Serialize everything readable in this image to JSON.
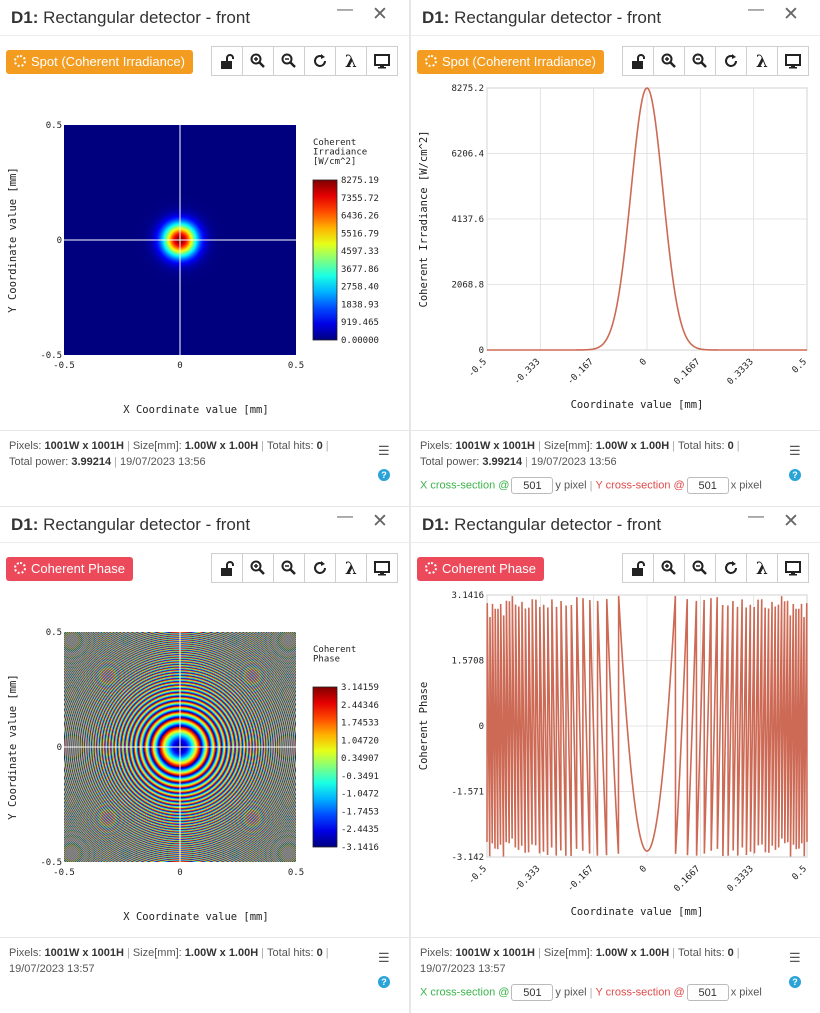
{
  "panels": [
    {
      "title_bold": "D1:",
      "title_rest": " Rectangular detector - front",
      "mode_label": "Spot (Coherent Irradiance)",
      "footer_line1": {
        "pixels_label": "Pixels:",
        "pixels": "1001W x 1001H",
        "size_label": "Size[mm]:",
        "size": "1.00W x 1.00H",
        "hits_label": "Total hits:",
        "hits": "0"
      },
      "footer_line2": {
        "power_label": "Total power:",
        "power": "3.99214",
        "date": "19/07/2023 13:56"
      }
    },
    {
      "title_bold": "D1:",
      "title_rest": " Rectangular detector - front",
      "mode_label": "Spot (Coherent Irradiance)",
      "footer_line1": {
        "pixels_label": "Pixels:",
        "pixels": "1001W x 1001H",
        "size_label": "Size[mm]:",
        "size": "1.00W x 1.00H",
        "hits_label": "Total hits:",
        "hits": "0"
      },
      "footer_line2": {
        "power_label": "Total power:",
        "power": "3.99214",
        "date": "19/07/2023 13:56"
      },
      "cross": {
        "x_label": "X cross-section @",
        "x_value": "501",
        "x_unit": "y pixel",
        "y_label": "Y cross-section @",
        "y_value": "501",
        "y_unit": "x pixel"
      }
    },
    {
      "title_bold": "D1:",
      "title_rest": " Rectangular detector - front",
      "mode_label": "Coherent Phase",
      "footer_line1": {
        "pixels_label": "Pixels:",
        "pixels": "1001W x 1001H",
        "size_label": "Size[mm]:",
        "size": "1.00W x 1.00H",
        "hits_label": "Total hits:",
        "hits": "0"
      },
      "footer_line2": {
        "date": "19/07/2023 13:57"
      }
    },
    {
      "title_bold": "D1:",
      "title_rest": " Rectangular detector - front",
      "mode_label": "Coherent Phase",
      "footer_line1": {
        "pixels_label": "Pixels:",
        "pixels": "1001W x 1001H",
        "size_label": "Size[mm]:",
        "size": "1.00W x 1.00H",
        "hits_label": "Total hits:",
        "hits": "0"
      },
      "footer_line2": {
        "date": "19/07/2023 13:57"
      },
      "cross": {
        "x_label": "X cross-section @",
        "x_value": "501",
        "x_unit": "y pixel",
        "y_label": "Y cross-section @",
        "y_value": "501",
        "y_unit": "x pixel"
      }
    }
  ],
  "toolbar_icons": [
    "unlock-icon",
    "zoom-in-icon",
    "zoom-out-icon",
    "refresh-icon",
    "lambda-icon",
    "monitor-icon"
  ],
  "colors": {
    "accent_orange": "#f39c1f",
    "accent_red": "#ec4a5b",
    "curve": "#cd6a55",
    "help": "#2aa3d8"
  },
  "chart_data": [
    {
      "type": "heatmap",
      "xlabel": "X Coordinate value [mm]",
      "ylabel": "Y Coordinate value [mm]",
      "xlim": [
        -0.5,
        0.5
      ],
      "ylim": [
        -0.5,
        0.5
      ],
      "x_ticks": [
        "-0.5",
        "0",
        "0.5"
      ],
      "y_ticks": [
        "0.5",
        "0",
        "-0.5"
      ],
      "colorbar_title": [
        "Coherent",
        "Irradiance",
        "[W/cm^2]"
      ],
      "colorbar_ticks": [
        "8275.19",
        "7355.72",
        "6436.26",
        "5516.79",
        "4597.33",
        "3677.86",
        "2758.40",
        "1838.93",
        "919.465",
        "0.00000"
      ],
      "spot_center": [
        0,
        0
      ],
      "spot_gaussian_sigma_mm": 0.05
    },
    {
      "type": "line",
      "xlabel": "Coordinate value [mm]",
      "ylabel": "Coherent Irradiance [W/cm^2]",
      "xlim": [
        -0.5,
        0.5
      ],
      "ylim": [
        0,
        8275.2
      ],
      "x_ticks": [
        "-0.5",
        "-0.333",
        "-0.167",
        "0",
        "0.1667",
        "0.3333",
        "0.5"
      ],
      "y_ticks": [
        "8275.2",
        "6206.4",
        "4137.6",
        "2068.8",
        "0"
      ],
      "series": [
        {
          "peak": 8275.2,
          "center": 0.0,
          "sigma": 0.05
        }
      ]
    },
    {
      "type": "heatmap",
      "xlabel": "X Coordinate value [mm]",
      "ylabel": "Y Coordinate value [mm]",
      "xlim": [
        -0.5,
        0.5
      ],
      "ylim": [
        -0.5,
        0.5
      ],
      "x_ticks": [
        "-0.5",
        "0",
        "0.5"
      ],
      "y_ticks": [
        "0.5",
        "0",
        "-0.5"
      ],
      "colorbar_title": [
        "Coherent",
        "Phase"
      ],
      "colorbar_ticks": [
        "3.14159",
        "2.44346",
        "1.74533",
        "1.04720",
        "0.34907",
        "-0.3491",
        "-1.0472",
        "-1.7453",
        "-2.4435",
        "-3.1416"
      ],
      "ring_phase_coefficient": 780
    },
    {
      "type": "line",
      "xlabel": "Coordinate value [mm]",
      "ylabel": "Coherent Phase",
      "xlim": [
        -0.5,
        0.5
      ],
      "ylim": [
        -3.142,
        3.1416
      ],
      "x_ticks": [
        "-0.5",
        "-0.333",
        "-0.167",
        "0",
        "0.1667",
        "0.3333",
        "0.5"
      ],
      "y_ticks": [
        "3.1416",
        "1.5708",
        "0",
        "-1.571",
        "-3.142"
      ],
      "series": [
        {
          "center_value": -3.0,
          "phase_coefficient": 780
        }
      ]
    }
  ]
}
